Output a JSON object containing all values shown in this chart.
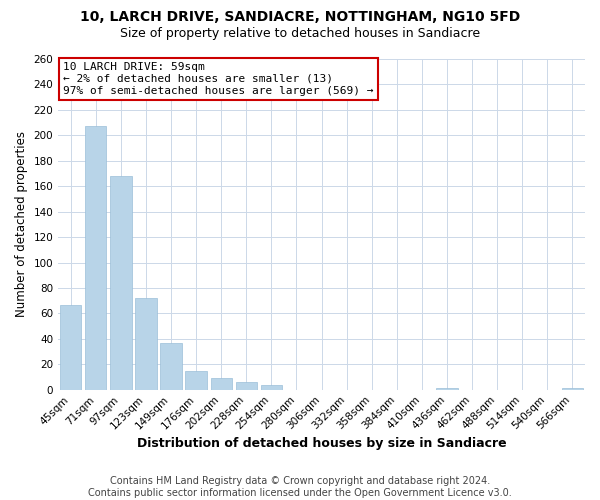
{
  "title": "10, LARCH DRIVE, SANDIACRE, NOTTINGHAM, NG10 5FD",
  "subtitle": "Size of property relative to detached houses in Sandiacre",
  "xlabel": "Distribution of detached houses by size in Sandiacre",
  "ylabel": "Number of detached properties",
  "bar_color": "#b8d4e8",
  "bar_edge_color": "#9bbfd8",
  "background_color": "#ffffff",
  "grid_color": "#ccd8e8",
  "categories": [
    "45sqm",
    "71sqm",
    "97sqm",
    "123sqm",
    "149sqm",
    "176sqm",
    "202sqm",
    "228sqm",
    "254sqm",
    "280sqm",
    "306sqm",
    "332sqm",
    "358sqm",
    "384sqm",
    "410sqm",
    "436sqm",
    "462sqm",
    "488sqm",
    "514sqm",
    "540sqm",
    "566sqm"
  ],
  "values": [
    67,
    207,
    168,
    72,
    37,
    15,
    9,
    6,
    4,
    0,
    0,
    0,
    0,
    0,
    0,
    1,
    0,
    0,
    0,
    0,
    1
  ],
  "ylim": [
    0,
    260
  ],
  "yticks": [
    0,
    20,
    40,
    60,
    80,
    100,
    120,
    140,
    160,
    180,
    200,
    220,
    240,
    260
  ],
  "annotation_title": "10 LARCH DRIVE: 59sqm",
  "annotation_line1": "← 2% of detached houses are smaller (13)",
  "annotation_line2": "97% of semi-detached houses are larger (569) →",
  "annotation_box_color": "#ffffff",
  "annotation_box_edge_color": "#cc0000",
  "footer_line1": "Contains HM Land Registry data © Crown copyright and database right 2024.",
  "footer_line2": "Contains public sector information licensed under the Open Government Licence v3.0.",
  "title_fontsize": 10,
  "subtitle_fontsize": 9,
  "xlabel_fontsize": 9,
  "ylabel_fontsize": 8.5,
  "tick_fontsize": 7.5,
  "annotation_fontsize": 8,
  "footer_fontsize": 7
}
